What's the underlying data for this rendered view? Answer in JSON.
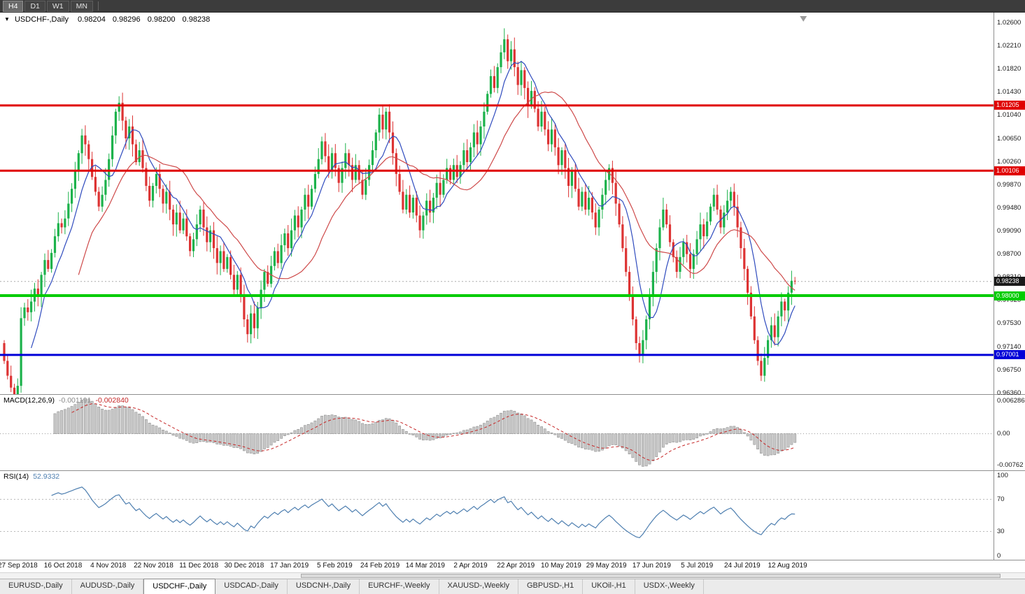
{
  "toolbar": {
    "timeframes": [
      {
        "label": "H4",
        "active": true
      },
      {
        "label": "D1",
        "active": false
      },
      {
        "label": "W1",
        "active": false
      },
      {
        "label": "MN",
        "active": false
      }
    ]
  },
  "header": {
    "symbol": "USDCHF-,Daily",
    "open": "0.98204",
    "high": "0.98296",
    "low": "0.98200",
    "close": "0.98238"
  },
  "chart_data": {
    "type": "candlestick",
    "title": "USDCHF-,Daily",
    "symbol": "USDCHF",
    "timeframe": "Daily",
    "ylim": [
      0.9634,
      1.0277
    ],
    "first_open": 0.972,
    "closes": [
      0.969,
      0.9665,
      0.9645,
      0.9632,
      0.9648,
      0.9762,
      0.978,
      0.9772,
      0.979,
      0.9812,
      0.98,
      0.9835,
      0.986,
      0.9845,
      0.9872,
      0.99,
      0.9922,
      0.9915,
      0.993,
      0.9955,
      0.998,
      1.001,
      1.004,
      1.007,
      1.0055,
      1.003,
      1.0,
      0.9975,
      0.995,
      0.997,
      0.9995,
      1.003,
      1.007,
      1.011,
      1.0125,
      1.0095,
      1.0065,
      1.0085,
      1.0055,
      1.0025,
      1.0045,
      1.0015,
      0.9985,
      0.996,
      0.9985,
      1.0005,
      0.998,
      0.9955,
      0.9975,
      0.9945,
      0.992,
      0.994,
      0.991,
      0.993,
      0.99,
      0.9875,
      0.9895,
      0.992,
      0.9945,
      0.9915,
      0.989,
      0.991,
      0.988,
      0.9855,
      0.9875,
      0.9845,
      0.9865,
      0.9835,
      0.981,
      0.9835,
      0.98,
      0.976,
      0.9735,
      0.977,
      0.9745,
      0.978,
      0.981,
      0.984,
      0.982,
      0.985,
      0.9875,
      0.9855,
      0.9885,
      0.9905,
      0.988,
      0.991,
      0.9935,
      0.9915,
      0.9945,
      0.997,
      0.995,
      0.998,
      1.0005,
      1.003,
      1.006,
      1.0035,
      1.001,
      1.004,
      1.0015,
      0.999,
      1.0015,
      1.004,
      1.002,
      0.9995,
      1.002,
      0.9995,
      0.997,
      0.9995,
      1.002,
      1.0045,
      1.0075,
      1.0105,
      1.008,
      1.011,
      1.0075,
      1.004,
      1.0005,
      0.9975,
      0.9945,
      0.997,
      0.994,
      0.9965,
      0.9935,
      0.991,
      0.9935,
      0.996,
      0.994,
      0.9965,
      0.999,
      0.997,
      0.9995,
      1.0015,
      0.9995,
      1.002,
      1.0,
      1.002,
      1.0045,
      1.0025,
      1.005,
      1.0075,
      1.0055,
      1.0085,
      1.011,
      1.014,
      1.017,
      1.015,
      1.0185,
      1.021,
      1.0232,
      1.0195,
      1.0215,
      1.0185,
      1.0155,
      1.018,
      1.015,
      1.012,
      1.0145,
      1.0115,
      1.0085,
      1.011,
      1.008,
      1.0055,
      1.008,
      1.005,
      1.002,
      1.0045,
      1.0015,
      0.9985,
      1.001,
      0.998,
      0.995,
      0.9975,
      0.9945,
      0.9965,
      0.994,
      0.9915,
      0.9945,
      0.997,
      0.9995,
      1.0015,
      0.999,
      0.9955,
      0.992,
      0.988,
      0.984,
      0.98,
      0.976,
      0.972,
      0.97,
      0.9725,
      0.976,
      0.98,
      0.984,
      0.988,
      0.9915,
      0.9945,
      0.992,
      0.989,
      0.9865,
      0.984,
      0.9865,
      0.989,
      0.987,
      0.9845,
      0.987,
      0.9895,
      0.992,
      0.99,
      0.9925,
      0.995,
      0.997,
      0.9945,
      0.9915,
      0.994,
      0.996,
      0.9975,
      0.995,
      0.9915,
      0.988,
      0.9845,
      0.9805,
      0.9765,
      0.9725,
      0.969,
      0.9665,
      0.9695,
      0.9725,
      0.975,
      0.973,
      0.9765,
      0.979,
      0.9775,
      0.9805,
      0.9825,
      0.98238
    ],
    "ma_fast_period": 8,
    "ma_slow_period": 22,
    "price_ticks": [
      "1.02600",
      "1.02210",
      "1.01820",
      "1.01430",
      "1.01040",
      "1.00650",
      "1.00260",
      "0.99870",
      "0.99480",
      "0.99090",
      "0.98700",
      "0.98310",
      "0.97920",
      "0.97530",
      "0.97140",
      "0.96750",
      "0.96360"
    ],
    "hlines": [
      {
        "price": 1.01205,
        "label": "1.01205",
        "color": "#E00000",
        "thickness": 3
      },
      {
        "price": 1.00106,
        "label": "1.00106",
        "color": "#E00000",
        "thickness": 3
      },
      {
        "price": 0.98,
        "label": "0.98000",
        "color": "#00CC00",
        "thickness": 4
      },
      {
        "price": 0.97001,
        "label": "0.97001",
        "color": "#0000D8",
        "thickness": 3
      }
    ],
    "current_price": {
      "value": 0.98238,
      "label": "0.98238",
      "badge_color": "#1A1A1A"
    },
    "x_labels": [
      "27 Sep 2018",
      "16 Oct 2018",
      "4 Nov 2018",
      "22 Nov 2018",
      "11 Dec 2018",
      "30 Dec 2018",
      "17 Jan 2019",
      "5 Feb 2019",
      "24 Feb 2019",
      "14 Mar 2019",
      "2 Apr 2019",
      "22 Apr 2019",
      "10 May 2019",
      "29 May 2019",
      "17 Jun 2019",
      "5 Jul 2019",
      "24 Jul 2019",
      "12 Aug 2019"
    ],
    "colors": {
      "up": "#1CB24B",
      "down": "#DD3333",
      "ma_fast": "#2F4BBE",
      "ma_slow": "#CE4A4A"
    }
  },
  "macd": {
    "name": "MACD(12,26,9)",
    "value_main": "-0.001191",
    "value_signal": "-0.002840",
    "axis_top": "0.006286",
    "axis_zero": "0.00",
    "axis_bottom": "-0.00762",
    "params": {
      "fast": 12,
      "slow": 26,
      "signal": 9
    },
    "colors": {
      "hist": "#C9C9C9",
      "hist_stroke": "#8F8F8F",
      "signal": "#C62828"
    }
  },
  "rsi": {
    "name": "RSI(14)",
    "value": "52.9332",
    "period": 14,
    "axis": [
      "100",
      "70",
      "30",
      "0"
    ],
    "levels": [
      70,
      30
    ],
    "color": "#4E7FB0"
  },
  "tabs": [
    {
      "label": "EURUSD-,Daily",
      "active": false
    },
    {
      "label": "AUDUSD-,Daily",
      "active": false
    },
    {
      "label": "USDCHF-,Daily",
      "active": true
    },
    {
      "label": "USDCAD-,Daily",
      "active": false
    },
    {
      "label": "USDCNH-,Daily",
      "active": false
    },
    {
      "label": "EURCHF-,Weekly",
      "active": false
    },
    {
      "label": "XAUUSD-,Weekly",
      "active": false
    },
    {
      "label": "GBPUSD-,H1",
      "active": false
    },
    {
      "label": "UKOil-,H1",
      "active": false
    },
    {
      "label": "USDX-,Weekly",
      "active": false
    }
  ]
}
